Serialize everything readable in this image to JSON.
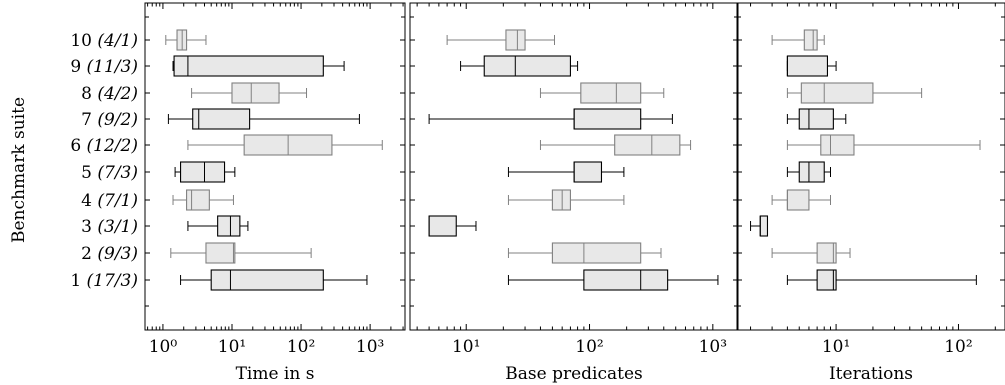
{
  "chart_data": {
    "type": "boxplot",
    "ylabel": "Benchmark suite",
    "rows": [
      {
        "id": "1",
        "note": "(17/3)",
        "color": "black"
      },
      {
        "id": "2",
        "note": "(9/3)",
        "color": "gray"
      },
      {
        "id": "3",
        "note": "(3/1)",
        "color": "black"
      },
      {
        "id": "4",
        "note": "(7/1)",
        "color": "gray"
      },
      {
        "id": "5",
        "note": "(7/3)",
        "color": "black"
      },
      {
        "id": "6",
        "note": "(12/2)",
        "color": "gray"
      },
      {
        "id": "7",
        "note": "(9/2)",
        "color": "black"
      },
      {
        "id": "8",
        "note": "(4/2)",
        "color": "gray"
      },
      {
        "id": "9",
        "note": "(11/3)",
        "color": "black"
      },
      {
        "id": "10",
        "note": "(4/1)",
        "color": "gray"
      }
    ],
    "colors": {
      "black": "#000000",
      "gray": "#808080",
      "fill": "#e8e8e8"
    },
    "panels": [
      {
        "xlabel": "Time in s",
        "scale": "log",
        "xlim": [
          0.55,
          3200
        ],
        "ticks": [
          {
            "v": 1,
            "label": "10⁰"
          },
          {
            "v": 10,
            "label": "10¹"
          },
          {
            "v": 100,
            "label": "10²"
          },
          {
            "v": 1000,
            "label": "10³"
          }
        ],
        "boxes": [
          {
            "row": "1",
            "min": 1.8,
            "q1": 5,
            "median": 9.5,
            "q3": 210,
            "max": 900
          },
          {
            "row": "2",
            "min": 1.3,
            "q1": 4.2,
            "median": 10.5,
            "q3": 11,
            "max": 140
          },
          {
            "row": "3",
            "min": 2.3,
            "q1": 6.2,
            "median": 9.5,
            "q3": 13,
            "max": 17
          },
          {
            "row": "4",
            "min": 1.4,
            "q1": 2.2,
            "median": 2.6,
            "q3": 4.7,
            "max": 10.5
          },
          {
            "row": "5",
            "min": 1.5,
            "q1": 1.8,
            "median": 4,
            "q3": 7.8,
            "max": 11
          },
          {
            "row": "6",
            "min": 2.3,
            "q1": 15,
            "median": 65,
            "q3": 280,
            "max": 1500
          },
          {
            "row": "7",
            "min": 1.2,
            "q1": 2.7,
            "median": 3.3,
            "q3": 18,
            "max": 700
          },
          {
            "row": "8",
            "min": 2.6,
            "q1": 10,
            "median": 19,
            "q3": 48,
            "max": 120
          },
          {
            "row": "9",
            "min": 1.4,
            "q1": 1.45,
            "median": 2.3,
            "q3": 210,
            "max": 420
          },
          {
            "row": "10",
            "min": 1.1,
            "q1": 1.6,
            "median": 1.9,
            "q3": 2.2,
            "max": 4.2
          }
        ]
      },
      {
        "xlabel": "Base predicates",
        "scale": "log",
        "xlim": [
          3.5,
          1600
        ],
        "ticks": [
          {
            "v": 10,
            "label": "10¹"
          },
          {
            "v": 100,
            "label": "10²"
          },
          {
            "v": 1000,
            "label": "10³"
          }
        ],
        "boxes": [
          {
            "row": "1",
            "min": 22,
            "q1": 90,
            "median": 260,
            "q3": 430,
            "max": 1100
          },
          {
            "row": "2",
            "min": 22,
            "q1": 50,
            "median": 90,
            "q3": 260,
            "max": 380
          },
          {
            "row": "3",
            "min": 5,
            "q1": 5,
            "median": 5,
            "q3": 8.3,
            "max": 12
          },
          {
            "row": "4",
            "min": 22,
            "q1": 50,
            "median": 60,
            "q3": 70,
            "max": 190
          },
          {
            "row": "5",
            "min": 22,
            "q1": 75,
            "median": 75,
            "q3": 125,
            "max": 190
          },
          {
            "row": "6",
            "min": 40,
            "q1": 160,
            "median": 320,
            "q3": 540,
            "max": 660
          },
          {
            "row": "7",
            "min": 5,
            "q1": 75,
            "median": 75,
            "q3": 260,
            "max": 470
          },
          {
            "row": "8",
            "min": 40,
            "q1": 85,
            "median": 165,
            "q3": 260,
            "max": 400
          },
          {
            "row": "9",
            "min": 9,
            "q1": 14,
            "median": 25,
            "q3": 70,
            "max": 80
          },
          {
            "row": "10",
            "min": 7,
            "q1": 21,
            "median": 26,
            "q3": 30,
            "max": 52
          }
        ]
      },
      {
        "xlabel": "Iterations",
        "scale": "log",
        "xlim": [
          1.55,
          240
        ],
        "ticks": [
          {
            "v": 10,
            "label": "10¹"
          },
          {
            "v": 100,
            "label": "10²"
          }
        ],
        "boxes": [
          {
            "row": "1",
            "min": 4,
            "q1": 7,
            "median": 9.5,
            "q3": 10,
            "max": 140
          },
          {
            "row": "2",
            "min": 3,
            "q1": 7,
            "median": 9.5,
            "q3": 10,
            "max": 13
          },
          {
            "row": "3",
            "min": 2,
            "q1": 2.4,
            "median": 2.4,
            "q3": 2.75,
            "max": 2.75
          },
          {
            "row": "4",
            "min": 3,
            "q1": 4,
            "median": 4,
            "q3": 6,
            "max": 9
          },
          {
            "row": "5",
            "min": 4,
            "q1": 5,
            "median": 6,
            "q3": 8,
            "max": 9
          },
          {
            "row": "6",
            "min": 4,
            "q1": 7.5,
            "median": 9,
            "q3": 14,
            "max": 150
          },
          {
            "row": "7",
            "min": 4,
            "q1": 5,
            "median": 6,
            "q3": 9.5,
            "max": 12
          },
          {
            "row": "8",
            "min": 4,
            "q1": 5.2,
            "median": 8,
            "q3": 20,
            "max": 50
          },
          {
            "row": "9",
            "min": 4,
            "q1": 4,
            "median": 4,
            "q3": 8.5,
            "max": 10
          },
          {
            "row": "10",
            "min": 3,
            "q1": 5.5,
            "median": 6.5,
            "q3": 7,
            "max": 8
          }
        ]
      }
    ]
  }
}
